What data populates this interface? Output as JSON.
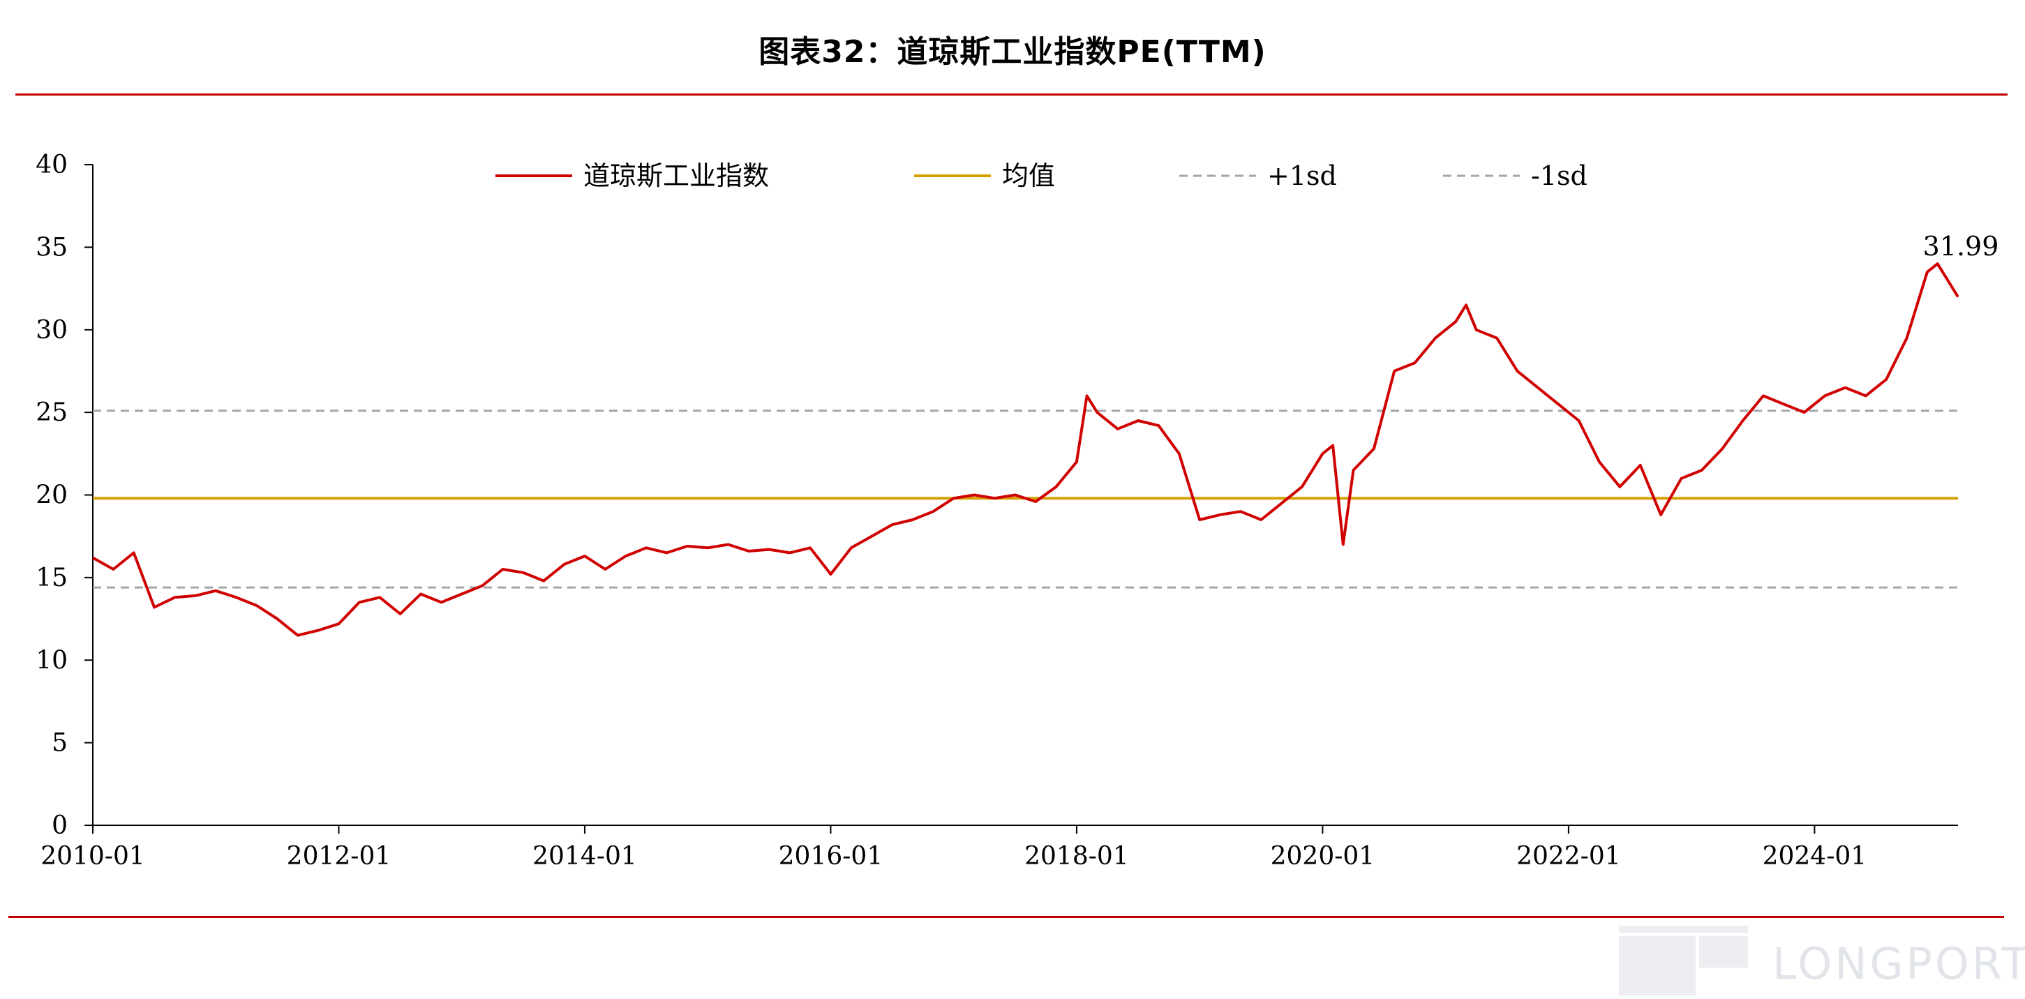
{
  "title": "图表32：道琼斯工业指数PE(TTM)",
  "watermark": "LONGPORT",
  "colors": {
    "series": "#d00000",
    "mean": "#d6a000",
    "sd": "#a6a6a6",
    "rule": "#c00000",
    "axis": "#000000"
  },
  "chart_data": {
    "type": "line",
    "title": "图表32：道琼斯工业指数PE(TTM)",
    "xlabel": "",
    "ylabel": "",
    "x_range": [
      "2010-01",
      "2025-03"
    ],
    "ylim": [
      0,
      40
    ],
    "yticks": [
      0,
      5,
      10,
      15,
      20,
      25,
      30,
      35,
      40
    ],
    "xticks": [
      "2010-01",
      "2012-01",
      "2014-01",
      "2016-01",
      "2018-01",
      "2020-01",
      "2022-01",
      "2024-01"
    ],
    "grid": false,
    "legend_position": "top",
    "series": [
      {
        "name": "道琼斯工业指数",
        "x": [
          "2010-01",
          "2010-03",
          "2010-05",
          "2010-07",
          "2010-09",
          "2010-11",
          "2011-01",
          "2011-03",
          "2011-05",
          "2011-07",
          "2011-09",
          "2011-11",
          "2012-01",
          "2012-03",
          "2012-05",
          "2012-07",
          "2012-09",
          "2012-11",
          "2013-01",
          "2013-03",
          "2013-05",
          "2013-07",
          "2013-09",
          "2013-11",
          "2014-01",
          "2014-03",
          "2014-05",
          "2014-07",
          "2014-09",
          "2014-11",
          "2015-01",
          "2015-03",
          "2015-05",
          "2015-07",
          "2015-09",
          "2015-11",
          "2016-01",
          "2016-03",
          "2016-05",
          "2016-07",
          "2016-09",
          "2016-11",
          "2017-01",
          "2017-03",
          "2017-05",
          "2017-07",
          "2017-09",
          "2017-11",
          "2018-01",
          "2018-02",
          "2018-03",
          "2018-05",
          "2018-07",
          "2018-09",
          "2018-11",
          "2019-01",
          "2019-03",
          "2019-05",
          "2019-07",
          "2019-09",
          "2019-11",
          "2020-01",
          "2020-02",
          "2020-03",
          "2020-04",
          "2020-06",
          "2020-08",
          "2020-10",
          "2020-12",
          "2021-02",
          "2021-03",
          "2021-04",
          "2021-06",
          "2021-08",
          "2021-10",
          "2021-12",
          "2022-02",
          "2022-04",
          "2022-06",
          "2022-08",
          "2022-10",
          "2022-12",
          "2023-02",
          "2023-04",
          "2023-06",
          "2023-08",
          "2023-10",
          "2023-12",
          "2024-02",
          "2024-04",
          "2024-06",
          "2024-08",
          "2024-10",
          "2024-12",
          "2025-01",
          "2025-02",
          "2025-03"
        ],
        "values": [
          16.2,
          15.5,
          16.5,
          13.2,
          13.8,
          13.9,
          14.2,
          13.8,
          13.3,
          12.5,
          11.5,
          11.8,
          12.2,
          13.5,
          13.8,
          12.8,
          14.0,
          13.5,
          14.0,
          14.5,
          15.5,
          15.3,
          14.8,
          15.8,
          16.3,
          15.5,
          16.3,
          16.8,
          16.5,
          16.9,
          16.8,
          17.0,
          16.6,
          16.7,
          16.5,
          16.8,
          15.2,
          16.8,
          17.5,
          18.2,
          18.5,
          19.0,
          19.8,
          20.0,
          19.8,
          20.0,
          19.6,
          20.5,
          22.0,
          26.0,
          25.0,
          24.0,
          24.5,
          24.2,
          22.5,
          18.5,
          18.8,
          19.0,
          18.5,
          19.5,
          20.5,
          22.5,
          23.0,
          17.0,
          21.5,
          22.8,
          27.5,
          28.0,
          29.5,
          30.5,
          31.5,
          30.0,
          29.5,
          27.5,
          26.5,
          25.5,
          24.5,
          22.0,
          20.5,
          21.8,
          18.8,
          21.0,
          21.5,
          22.8,
          24.5,
          26.0,
          25.5,
          25.0,
          26.0,
          26.5,
          26.0,
          27.0,
          29.5,
          33.5,
          34.0,
          33.0,
          31.99
        ]
      },
      {
        "name": "均值",
        "value": 19.8
      },
      {
        "name": "+1sd",
        "value": 25.1
      },
      {
        "name": "-1sd",
        "value": 14.4
      }
    ],
    "annotations": [
      {
        "text": "31.99",
        "x": "2025-03",
        "y": 31.99
      }
    ]
  }
}
